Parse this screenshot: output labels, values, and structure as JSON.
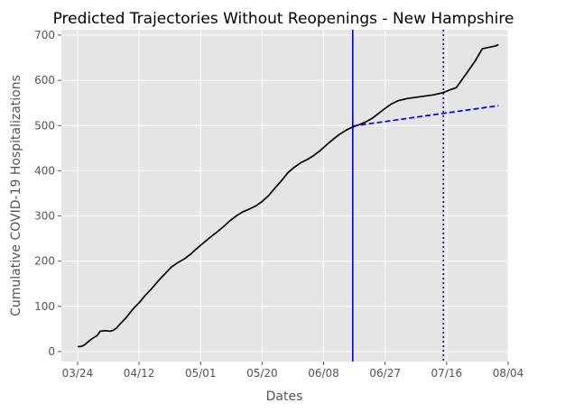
{
  "chart_data": {
    "type": "line",
    "title": "Predicted Trajectories Without Reopenings - New Hampshire",
    "xlabel": "Dates",
    "ylabel": "Cumulative COVID-19 Hospitalizations",
    "x_ticks": [
      "03/24",
      "04/12",
      "05/01",
      "05/20",
      "06/08",
      "06/27",
      "07/16",
      "08/04"
    ],
    "y_ticks": [
      0,
      100,
      200,
      300,
      400,
      500,
      600,
      700
    ],
    "xlim": [
      "2020-03-19",
      "2020-08-04"
    ],
    "ylim": [
      -22,
      712
    ],
    "grid": true,
    "legend": "none",
    "colors": {
      "background": "#e5e5e5",
      "grid": "#ffffff",
      "observed": "#000000",
      "projection": "#0000ff",
      "marker": "#0000cd"
    },
    "series": [
      {
        "style": "solid",
        "color": "#000000",
        "points": [
          [
            "2020-03-24",
            11
          ],
          [
            "2020-03-25",
            11
          ],
          [
            "2020-03-26",
            14
          ],
          [
            "2020-03-27",
            20
          ],
          [
            "2020-03-28",
            26
          ],
          [
            "2020-03-29",
            31
          ],
          [
            "2020-03-30",
            35
          ],
          [
            "2020-03-31",
            45
          ],
          [
            "2020-04-01",
            46
          ],
          [
            "2020-04-02",
            46
          ],
          [
            "2020-04-03",
            45
          ],
          [
            "2020-04-04",
            47
          ],
          [
            "2020-04-05",
            52
          ],
          [
            "2020-04-06",
            60
          ],
          [
            "2020-04-08",
            75
          ],
          [
            "2020-04-10",
            93
          ],
          [
            "2020-04-12",
            108
          ],
          [
            "2020-04-14",
            125
          ],
          [
            "2020-04-16",
            140
          ],
          [
            "2020-04-18",
            157
          ],
          [
            "2020-04-20",
            172
          ],
          [
            "2020-04-22",
            187
          ],
          [
            "2020-04-24",
            197
          ],
          [
            "2020-04-26",
            205
          ],
          [
            "2020-04-28",
            216
          ],
          [
            "2020-04-30",
            229
          ],
          [
            "2020-05-02",
            241
          ],
          [
            "2020-05-04",
            253
          ],
          [
            "2020-05-06",
            264
          ],
          [
            "2020-05-08",
            276
          ],
          [
            "2020-05-10",
            289
          ],
          [
            "2020-05-12",
            300
          ],
          [
            "2020-05-14",
            309
          ],
          [
            "2020-05-16",
            315
          ],
          [
            "2020-05-18",
            322
          ],
          [
            "2020-05-20",
            332
          ],
          [
            "2020-05-22",
            345
          ],
          [
            "2020-05-24",
            362
          ],
          [
            "2020-05-26",
            378
          ],
          [
            "2020-05-28",
            396
          ],
          [
            "2020-05-30",
            408
          ],
          [
            "2020-06-01",
            418
          ],
          [
            "2020-06-03",
            425
          ],
          [
            "2020-06-05",
            434
          ],
          [
            "2020-06-07",
            445
          ],
          [
            "2020-06-09",
            458
          ],
          [
            "2020-06-11",
            470
          ],
          [
            "2020-06-13",
            481
          ],
          [
            "2020-06-15",
            490
          ],
          [
            "2020-06-17",
            497
          ],
          [
            "2020-06-19",
            502
          ],
          [
            "2020-06-21",
            508
          ],
          [
            "2020-06-23",
            516
          ],
          [
            "2020-06-25",
            527
          ],
          [
            "2020-06-27",
            538
          ],
          [
            "2020-06-29",
            548
          ],
          [
            "2020-07-01",
            555
          ],
          [
            "2020-07-04",
            560
          ],
          [
            "2020-07-08",
            564
          ],
          [
            "2020-07-12",
            568
          ],
          [
            "2020-07-15",
            573
          ],
          [
            "2020-07-17",
            579
          ],
          [
            "2020-07-19",
            584
          ],
          [
            "2020-07-22",
            614
          ],
          [
            "2020-07-25",
            645
          ],
          [
            "2020-07-27",
            670
          ],
          [
            "2020-07-29",
            673
          ],
          [
            "2020-07-31",
            676
          ],
          [
            "2020-08-01",
            679
          ]
        ]
      },
      {
        "style": "dashed",
        "color": "#0000ff",
        "points": [
          [
            "2020-06-17",
            499
          ],
          [
            "2020-08-01",
            544
          ]
        ]
      }
    ],
    "vertical_lines": [
      {
        "x": "2020-06-17",
        "style": "solid",
        "color": "#0000cd"
      },
      {
        "x": "2020-07-15",
        "style": "dotted",
        "color": "#0000cd"
      }
    ]
  }
}
